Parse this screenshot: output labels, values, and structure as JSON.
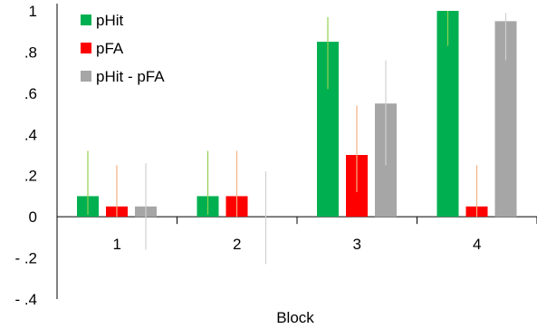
{
  "chart_data": {
    "type": "bar",
    "title": "",
    "xlabel": "Block",
    "ylabel": "",
    "ylim": [
      -0.4,
      1.0
    ],
    "y_ticks": [
      "1",
      ".8",
      ".6",
      ".4",
      ".2",
      "0",
      "- .2",
      "- .4"
    ],
    "y_tick_values": [
      1.0,
      0.8,
      0.6,
      0.4,
      0.2,
      0.0,
      -0.2,
      -0.4
    ],
    "categories": [
      "1",
      "2",
      "3",
      "4"
    ],
    "series": [
      {
        "name": "pHit",
        "color": "#00b050",
        "error_color": "#92d050",
        "values": [
          0.1,
          0.1,
          0.85,
          1.0
        ],
        "error_low": [
          0.01,
          0.01,
          0.62,
          0.83
        ],
        "error_high": [
          0.32,
          0.32,
          0.97,
          1.0
        ]
      },
      {
        "name": "pFA",
        "color": "#ff0000",
        "error_color": "#f4b183",
        "values": [
          0.05,
          0.1,
          0.3,
          0.05
        ],
        "error_low": [
          0.0,
          0.0,
          0.12,
          0.0
        ],
        "error_high": [
          0.25,
          0.32,
          0.54,
          0.25
        ]
      },
      {
        "name": "pHit - pFA",
        "color": "#a6a6a6",
        "error_color": "#d0d0d0",
        "values": [
          0.05,
          0.0,
          0.55,
          0.95
        ],
        "error_low": [
          -0.16,
          -0.23,
          0.25,
          0.76
        ],
        "error_high": [
          0.26,
          0.22,
          0.76,
          0.99
        ]
      }
    ],
    "grid": false,
    "legend_position": "top-left"
  }
}
